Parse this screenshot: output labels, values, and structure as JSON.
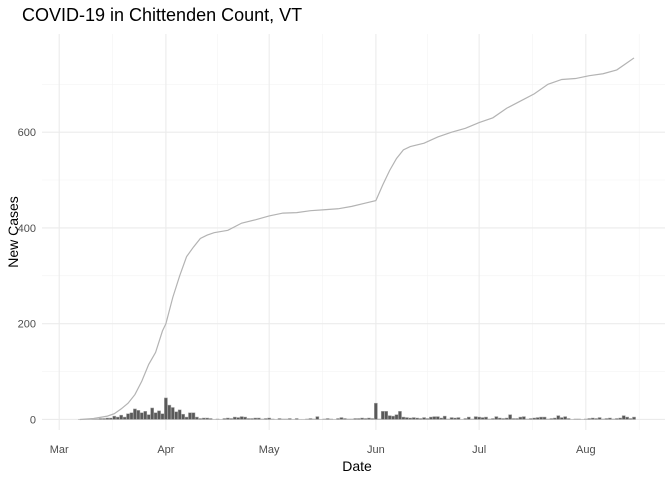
{
  "chart_data": {
    "type": "bar",
    "title": "COVID-19 in Chittenden Count, VT",
    "xlabel": "Date",
    "ylabel": "New Cases",
    "x_ticks": [
      {
        "date": "2020-03-01",
        "label": "Mar"
      },
      {
        "date": "2020-04-01",
        "label": "Apr"
      },
      {
        "date": "2020-05-01",
        "label": "May"
      },
      {
        "date": "2020-06-01",
        "label": "Jun"
      },
      {
        "date": "2020-07-01",
        "label": "Jul"
      },
      {
        "date": "2020-08-01",
        "label": "Aug"
      }
    ],
    "y_ticks": [
      0,
      200,
      400,
      600
    ],
    "xlim": [
      "2020-02-25",
      "2020-08-24"
    ],
    "ylim": [
      -22,
      805
    ],
    "grid": true,
    "daily_series": {
      "name": "new",
      "x": [
        "2020-03-07",
        "2020-03-08",
        "2020-03-09",
        "2020-03-10",
        "2020-03-11",
        "2020-03-12",
        "2020-03-13",
        "2020-03-14",
        "2020-03-15",
        "2020-03-16",
        "2020-03-17",
        "2020-03-18",
        "2020-03-19",
        "2020-03-20",
        "2020-03-21",
        "2020-03-22",
        "2020-03-23",
        "2020-03-24",
        "2020-03-25",
        "2020-03-26",
        "2020-03-27",
        "2020-03-28",
        "2020-03-29",
        "2020-03-30",
        "2020-03-31",
        "2020-04-01",
        "2020-04-02",
        "2020-04-03",
        "2020-04-04",
        "2020-04-05",
        "2020-04-06",
        "2020-04-07",
        "2020-04-08",
        "2020-04-09",
        "2020-04-10",
        "2020-04-11",
        "2020-04-12",
        "2020-04-13",
        "2020-04-14",
        "2020-04-15",
        "2020-04-16",
        "2020-04-17",
        "2020-04-18",
        "2020-04-19",
        "2020-04-20",
        "2020-04-21",
        "2020-04-22",
        "2020-04-23",
        "2020-04-24",
        "2020-04-25",
        "2020-04-26",
        "2020-04-27",
        "2020-04-28",
        "2020-04-29",
        "2020-04-30",
        "2020-05-01",
        "2020-05-02",
        "2020-05-03",
        "2020-05-04",
        "2020-05-05",
        "2020-05-06",
        "2020-05-07",
        "2020-05-08",
        "2020-05-09",
        "2020-05-10",
        "2020-05-11",
        "2020-05-12",
        "2020-05-13",
        "2020-05-14",
        "2020-05-15",
        "2020-05-16",
        "2020-05-17",
        "2020-05-18",
        "2020-05-19",
        "2020-05-20",
        "2020-05-21",
        "2020-05-22",
        "2020-05-23",
        "2020-05-24",
        "2020-05-25",
        "2020-05-26",
        "2020-05-27",
        "2020-05-28",
        "2020-05-29",
        "2020-05-30",
        "2020-05-31",
        "2020-06-01",
        "2020-06-02",
        "2020-06-03",
        "2020-06-04",
        "2020-06-05",
        "2020-06-06",
        "2020-06-07",
        "2020-06-08",
        "2020-06-09",
        "2020-06-10",
        "2020-06-11",
        "2020-06-12",
        "2020-06-13",
        "2020-06-14",
        "2020-06-15",
        "2020-06-16",
        "2020-06-17",
        "2020-06-18",
        "2020-06-19",
        "2020-06-20",
        "2020-06-21",
        "2020-06-22",
        "2020-06-23",
        "2020-06-24",
        "2020-06-25",
        "2020-06-26",
        "2020-06-27",
        "2020-06-28",
        "2020-06-29",
        "2020-06-30",
        "2020-07-01",
        "2020-07-02",
        "2020-07-03",
        "2020-07-04",
        "2020-07-05",
        "2020-07-06",
        "2020-07-07",
        "2020-07-08",
        "2020-07-09",
        "2020-07-10",
        "2020-07-11",
        "2020-07-12",
        "2020-07-13",
        "2020-07-14",
        "2020-07-15",
        "2020-07-16",
        "2020-07-17",
        "2020-07-18",
        "2020-07-19",
        "2020-07-20",
        "2020-07-21",
        "2020-07-22",
        "2020-07-23",
        "2020-07-24",
        "2020-07-25",
        "2020-07-26",
        "2020-07-27",
        "2020-07-28",
        "2020-07-29",
        "2020-07-30",
        "2020-07-31",
        "2020-08-01",
        "2020-08-02",
        "2020-08-03",
        "2020-08-04",
        "2020-08-05",
        "2020-08-06",
        "2020-08-07",
        "2020-08-08",
        "2020-08-09",
        "2020-08-10",
        "2020-08-11",
        "2020-08-12",
        "2020-08-13",
        "2020-08-14",
        "2020-08-15"
      ],
      "values": [
        0,
        0,
        1,
        0,
        1,
        1,
        2,
        2,
        3,
        3,
        7,
        5,
        9,
        5,
        12,
        14,
        22,
        19,
        14,
        17,
        10,
        24,
        14,
        18,
        12,
        45,
        30,
        25,
        16,
        20,
        11,
        5,
        14,
        14,
        5,
        2,
        3,
        3,
        2,
        0,
        1,
        0,
        2,
        3,
        2,
        5,
        4,
        6,
        5,
        2,
        2,
        3,
        3,
        1,
        2,
        3,
        1,
        0,
        2,
        1,
        1,
        2,
        0,
        2,
        0,
        0,
        1,
        2,
        1,
        6,
        0,
        1,
        2,
        1,
        0,
        2,
        4,
        2,
        1,
        1,
        2,
        2,
        3,
        2,
        3,
        2,
        34,
        1,
        17,
        17,
        8,
        7,
        10,
        17,
        5,
        4,
        3,
        4,
        3,
        2,
        4,
        2,
        5,
        6,
        6,
        3,
        7,
        1,
        4,
        3,
        4,
        0,
        2,
        5,
        1,
        6,
        5,
        4,
        5,
        1,
        2,
        6,
        3,
        2,
        3,
        10,
        2,
        2,
        5,
        6,
        1,
        2,
        3,
        4,
        5,
        5,
        1,
        2,
        3,
        8,
        4,
        6,
        2,
        0,
        1,
        1,
        0,
        1,
        2,
        3,
        2,
        4,
        1,
        2,
        3,
        1,
        2,
        3,
        8,
        5,
        2,
        5
      ]
    },
    "cumulative_series": {
      "name": "cumulative",
      "x": [
        "2020-03-07",
        "2020-03-11",
        "2020-03-15",
        "2020-03-17",
        "2020-03-19",
        "2020-03-21",
        "2020-03-23",
        "2020-03-25",
        "2020-03-27",
        "2020-03-29",
        "2020-03-31",
        "2020-04-01",
        "2020-04-03",
        "2020-04-05",
        "2020-04-07",
        "2020-04-09",
        "2020-04-11",
        "2020-04-13",
        "2020-04-15",
        "2020-04-19",
        "2020-04-23",
        "2020-04-27",
        "2020-05-01",
        "2020-05-05",
        "2020-05-09",
        "2020-05-13",
        "2020-05-17",
        "2020-05-21",
        "2020-05-25",
        "2020-05-29",
        "2020-06-01",
        "2020-06-03",
        "2020-06-05",
        "2020-06-07",
        "2020-06-09",
        "2020-06-11",
        "2020-06-15",
        "2020-06-19",
        "2020-06-23",
        "2020-06-27",
        "2020-07-01",
        "2020-07-05",
        "2020-07-09",
        "2020-07-13",
        "2020-07-17",
        "2020-07-21",
        "2020-07-25",
        "2020-07-29",
        "2020-08-02",
        "2020-08-06",
        "2020-08-10",
        "2020-08-13",
        "2020-08-15"
      ],
      "values": [
        0,
        2,
        7,
        12,
        22,
        34,
        52,
        80,
        115,
        140,
        185,
        200,
        255,
        300,
        340,
        360,
        378,
        385,
        390,
        395,
        410,
        417,
        425,
        431,
        432,
        436,
        438,
        440,
        445,
        452,
        457,
        490,
        520,
        545,
        563,
        570,
        577,
        590,
        600,
        608,
        620,
        630,
        650,
        665,
        680,
        700,
        710,
        712,
        718,
        722,
        730,
        745,
        755
      ]
    }
  }
}
